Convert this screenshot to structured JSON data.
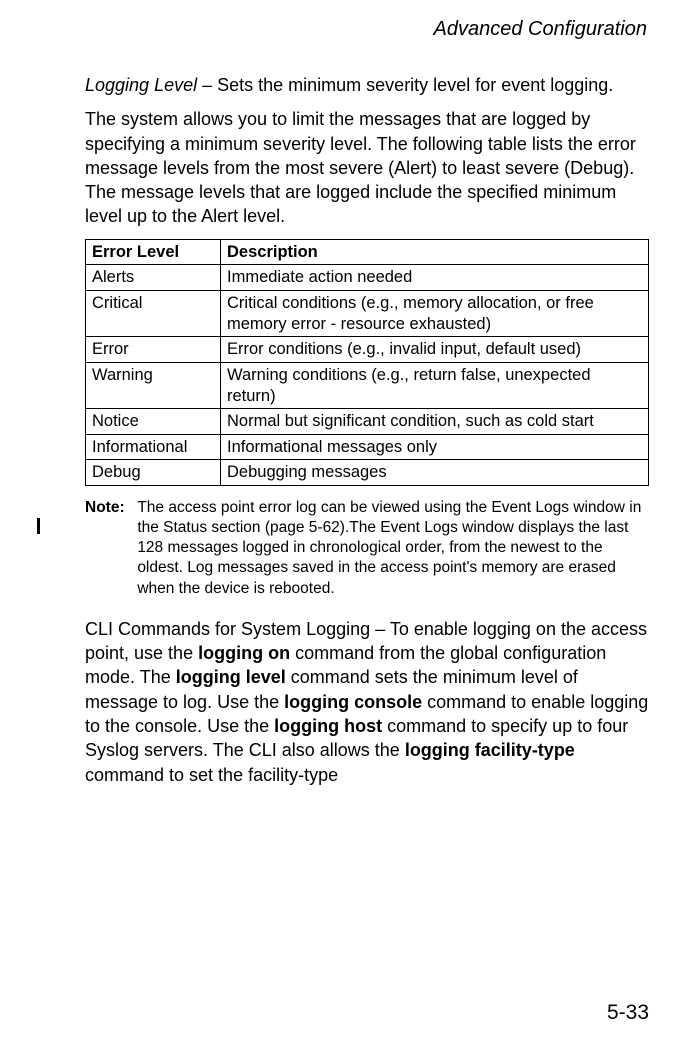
{
  "header": {
    "title": "Advanced Configuration"
  },
  "intro": {
    "lead_term": "Logging Level",
    "lead_rest": " – Sets the minimum severity level for event logging.",
    "para2": "The system allows you to limit the messages that are logged by specifying a minimum severity level. The following table lists the error message levels from the most severe (Alert) to least severe (Debug). The message levels that are logged include the specified minimum level up to the Alert level."
  },
  "table": {
    "col1_header": "Error Level",
    "col2_header": "Description",
    "rows": [
      {
        "level": "Alerts",
        "desc": "Immediate action needed"
      },
      {
        "level": "Critical",
        "desc": "Critical conditions (e.g., memory allocation, or free memory error - resource exhausted)"
      },
      {
        "level": "Error",
        "desc": "Error conditions (e.g., invalid input, default used)"
      },
      {
        "level": "Warning",
        "desc": "Warning conditions (e.g., return false, unexpected return)"
      },
      {
        "level": "Notice",
        "desc": "Normal but significant condition, such as cold start"
      },
      {
        "level": "Informational",
        "desc": "Informational messages only"
      },
      {
        "level": "Debug",
        "desc": "Debugging messages"
      }
    ]
  },
  "note": {
    "label": "Note:",
    "body": "The access point error log can be viewed using the Event Logs window in the Status section (page 5-62).The Event Logs window displays the last 128 messages logged in chronological order, from the newest to the oldest. Log messages saved in the access point's memory are erased when the device is rebooted."
  },
  "cli": {
    "t1": "CLI Commands for System Logging – To enable logging on the access point, use the ",
    "b1": "logging on",
    "t2": " command from the global configuration mode. The ",
    "b2": "logging level",
    "t3": " command sets the minimum level of message to log. Use the ",
    "b3": "logging console",
    "t4": " command to enable logging to the console. Use the ",
    "b4": "logging host",
    "t5": " command to specify up to four Syslog servers. The CLI also allows the ",
    "b5": "logging facility-type",
    "t6": " command to set the facility-type"
  },
  "footer": {
    "page_number": "5-33"
  }
}
